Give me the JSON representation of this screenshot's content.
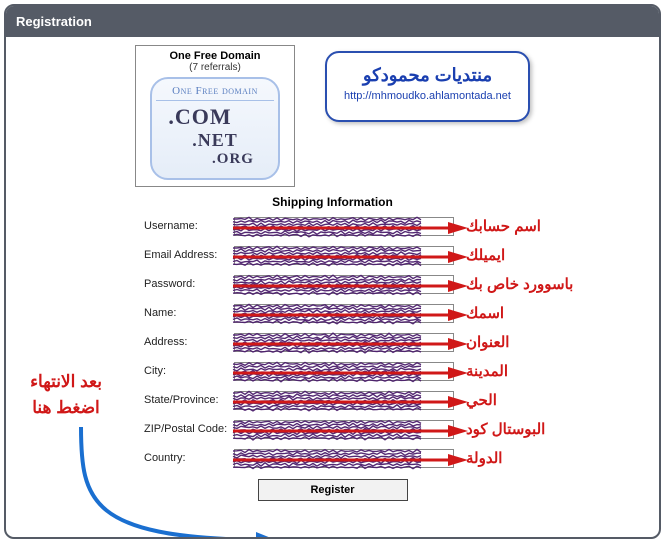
{
  "header": "Registration",
  "domain_box": {
    "title": "One Free Domain",
    "subtitle": "(7 referrals)",
    "inner_title": "One Free domain",
    "tld1": ".COM",
    "tld2": ".NET",
    "tld3": ".ORG"
  },
  "forum_box": {
    "title": "منتديات محمودكو",
    "url": "http://mhmoudko.ahlamontada.net"
  },
  "section_title": "Shipping Information",
  "rows": [
    {
      "label": "Username:",
      "ar": "اسم حسابك"
    },
    {
      "label": "Email Address:",
      "ar": "ايميلك"
    },
    {
      "label": "Password:",
      "ar": "باسوورد خاص بك"
    },
    {
      "label": "Name:",
      "ar": "اسمك"
    },
    {
      "label": "Address:",
      "ar": "العنوان"
    },
    {
      "label": "City:",
      "ar": "المدينة"
    },
    {
      "label": "State/Province:",
      "ar": "الحي"
    },
    {
      "label": "ZIP/Postal Code:",
      "ar": "البوستال كود"
    },
    {
      "label": "Country:",
      "ar": "الدولة"
    }
  ],
  "side_note_l1": "بعد الانتهاء",
  "side_note_l2": "اضغط هنا",
  "register_label": "Register",
  "colors": {
    "scribble": "#4b1d6b",
    "arrow": "#d01818",
    "pointer": "#1a6fd0"
  }
}
